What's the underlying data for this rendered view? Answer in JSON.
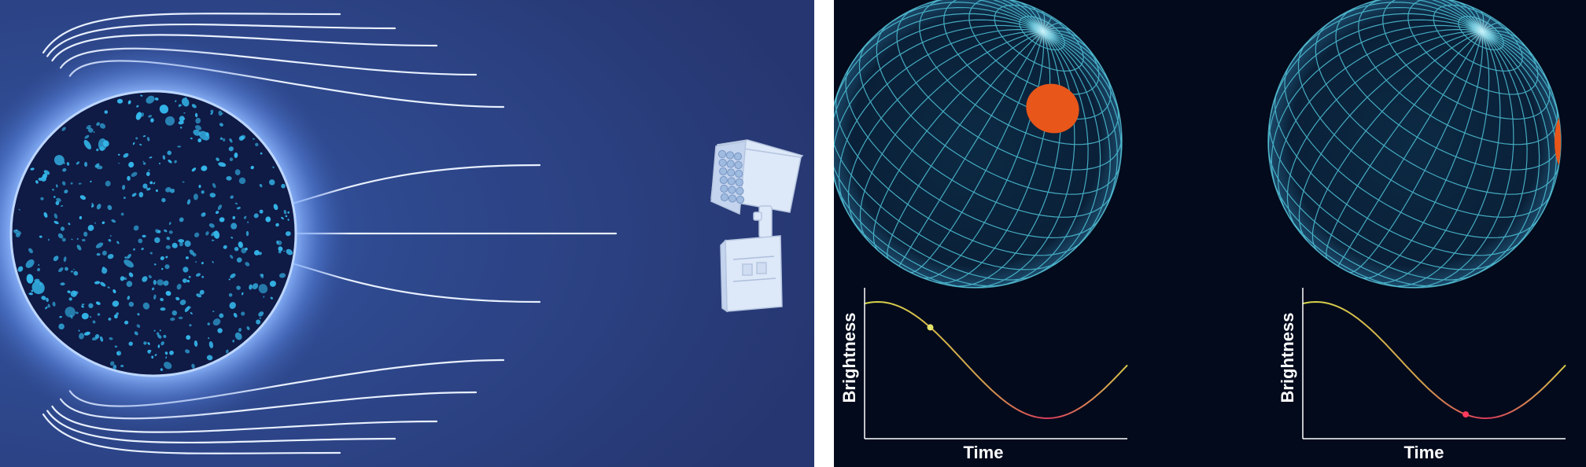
{
  "left_diagram": {
    "colors": {
      "background": "#2a3a74",
      "star": "#0f1a45",
      "star_spots": "#35b8ec",
      "field_lines": "#e8f0ff",
      "glow": "#6a9cff",
      "spacecraft": "#dde8f8"
    },
    "icons": [
      "star-icon",
      "magnetic-field-lines",
      "spacecraft-icon"
    ]
  },
  "right_diagram": {
    "colors": {
      "background": "#020a1c",
      "sphere_grid": "#4fc3d9",
      "starspot": "#e8561a",
      "curve_high": "#d7d84a",
      "curve_low": "#d83a5a",
      "axes": "#ffffff"
    },
    "chart_data": [
      {
        "type": "line",
        "xlabel": "Time",
        "ylabel": "Brightness",
        "marker_position": 0.25,
        "marker_color": "#e6e36a"
      },
      {
        "type": "line",
        "xlabel": "Time",
        "ylabel": "Brightness",
        "marker_position": 0.62,
        "marker_color": "#ff3a5c"
      }
    ]
  }
}
